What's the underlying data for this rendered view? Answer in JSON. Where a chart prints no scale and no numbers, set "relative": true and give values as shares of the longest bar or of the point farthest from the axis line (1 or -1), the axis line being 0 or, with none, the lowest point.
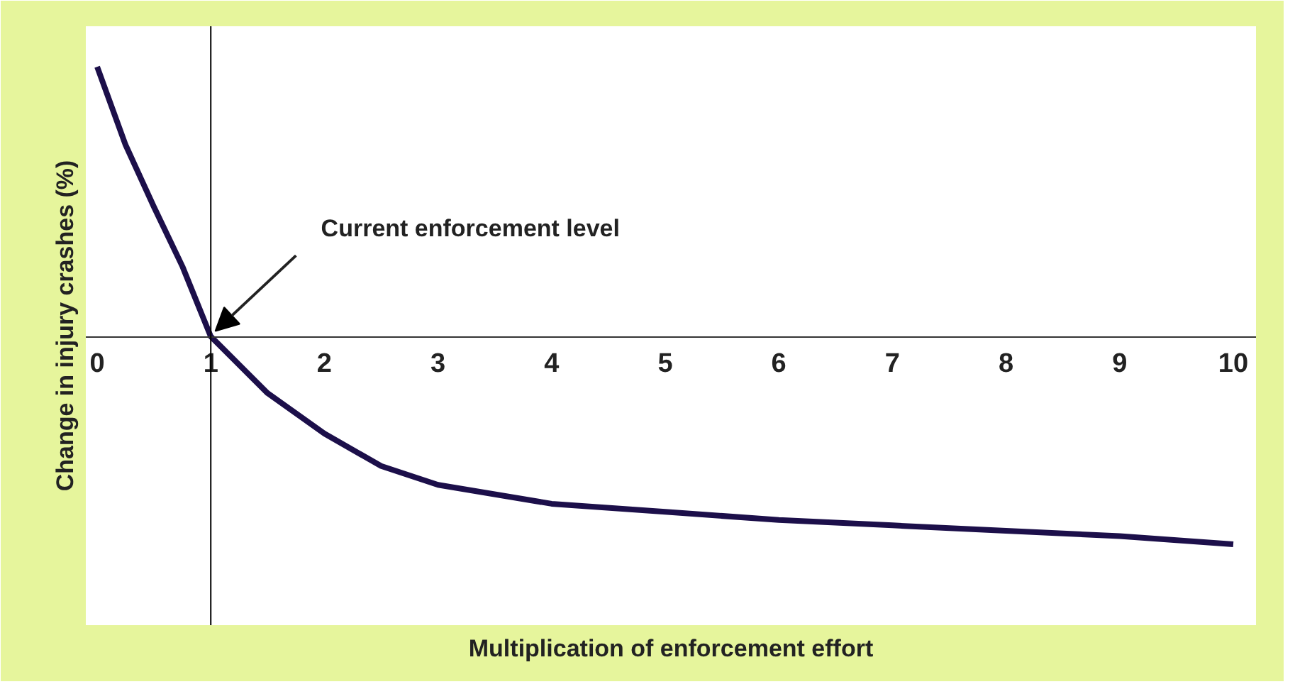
{
  "chart_data": {
    "type": "line",
    "relative": true,
    "xlabel": "Multiplication of enforcement effort",
    "ylabel": "Change in injury crashes (%)",
    "x": [
      0,
      0.25,
      0.5,
      0.75,
      1,
      1.5,
      2,
      2.5,
      3,
      4,
      5,
      6,
      7,
      8,
      9,
      10
    ],
    "series": [
      {
        "color": "#1c0f4a",
        "values": [
          1.0,
          0.71,
          0.48,
          0.26,
          0,
          -0.21,
          -0.36,
          -0.48,
          -0.55,
          -0.62,
          -0.65,
          -0.68,
          -0.7,
          -0.72,
          -0.74,
          -0.77
        ]
      }
    ],
    "xlim": [
      -0.1,
      10.2
    ],
    "xticks": [
      0,
      1,
      2,
      3,
      4,
      5,
      6,
      7,
      8,
      9,
      10
    ],
    "ref_lines": [
      {
        "axis": "x",
        "value": 1,
        "color": "#000000"
      }
    ],
    "annotations": [
      {
        "text": "Current enforcement level",
        "x": 1,
        "y": 0
      }
    ],
    "grid": false,
    "marker": "none",
    "line_style": "solid"
  }
}
